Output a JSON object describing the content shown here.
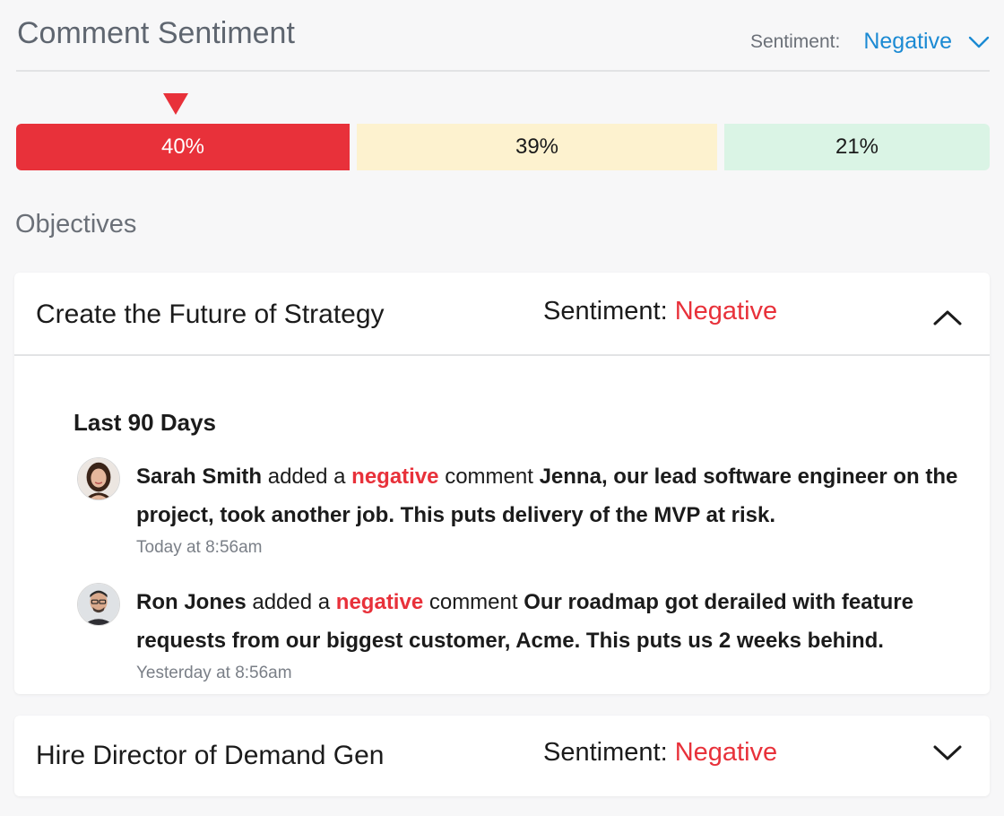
{
  "header": {
    "title": "Comment Sentiment",
    "filter_label": "Sentiment:",
    "filter_value": "Negative",
    "filter_icon": "chevron-down-icon"
  },
  "distribution": {
    "selected": "negative",
    "segments": [
      {
        "key": "negative",
        "label": "40%",
        "value": 40,
        "color": "#e8313a"
      },
      {
        "key": "neutral",
        "label": "39%",
        "value": 39,
        "color": "#fdf2cf"
      },
      {
        "key": "positive",
        "label": "21%",
        "value": 21,
        "color": "#daf4e5"
      }
    ]
  },
  "section_title": "Objectives",
  "objectives": [
    {
      "title": "Create the Future of Strategy",
      "sentiment_label": "Sentiment:",
      "sentiment_value": "Negative",
      "expanded": true,
      "toggle_icon": "chevron-up-icon",
      "period": "Last 90 Days",
      "comments": [
        {
          "author": "Sarah Smith",
          "verb": "added a",
          "sentiment": "negative",
          "noun": "comment",
          "text": "Jenna, our lead software engineer on the project, took another job. This puts delivery of the MVP at risk.",
          "time": "Today at 8:56am"
        },
        {
          "author": "Ron Jones",
          "verb": "added a",
          "sentiment": "negative",
          "noun": "comment",
          "text": "Our roadmap got derailed with feature requests from our biggest customer, Acme. This puts us 2 weeks behind.",
          "time": "Yesterday at 8:56am"
        }
      ]
    },
    {
      "title": "Hire Director of Demand Gen",
      "sentiment_label": "Sentiment:",
      "sentiment_value": "Negative",
      "expanded": false,
      "toggle_icon": "chevron-down-icon"
    }
  ],
  "colors": {
    "negative": "#e8313a",
    "accent": "#1b8ad3"
  }
}
